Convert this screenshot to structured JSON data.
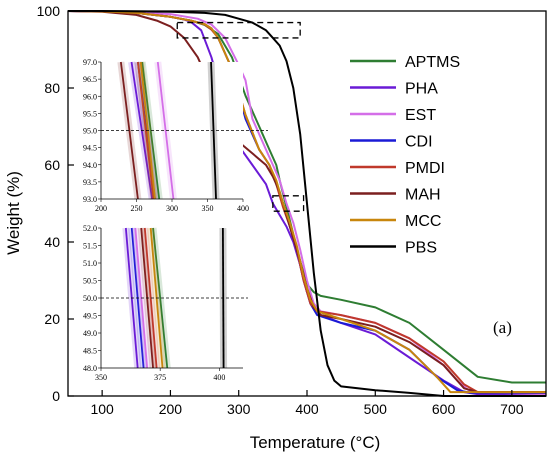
{
  "chart_data": {
    "type": "line",
    "xlabel": "Temperature (°C)",
    "ylabel": "Weight (%)",
    "xlim": [
      50,
      750
    ],
    "ylim": [
      0,
      100
    ],
    "xticks": [
      100,
      200,
      300,
      400,
      500,
      600,
      700
    ],
    "yticks": [
      0,
      20,
      40,
      60,
      80,
      100
    ],
    "grid": false,
    "legend_position": "top-right",
    "annotation": "(a)",
    "series": [
      {
        "name": "APTMS",
        "color": "#2e7d32",
        "x": [
          50,
          100,
          150,
          200,
          230,
          250,
          270,
          290,
          310,
          330,
          345,
          355,
          360,
          370,
          380,
          390,
          400,
          405,
          410,
          420,
          450,
          500,
          550,
          600,
          650,
          700,
          750
        ],
        "y": [
          100,
          99.9,
          99.5,
          98.5,
          97.5,
          96.4,
          94,
          88,
          78,
          70,
          64,
          60,
          56,
          49,
          42,
          35,
          29,
          28,
          27,
          26,
          25,
          23,
          19,
          12,
          5,
          3.5,
          3.5
        ]
      },
      {
        "name": "PHA",
        "color": "#6a1bd6",
        "x": [
          50,
          100,
          150,
          200,
          220,
          230,
          245,
          260,
          280,
          300,
          320,
          340,
          350,
          360,
          370,
          380,
          390,
          400,
          410,
          420,
          450,
          500,
          550,
          600,
          630,
          650,
          750
        ],
        "y": [
          100,
          99.9,
          99.5,
          98.5,
          97.8,
          97.2,
          95,
          88,
          75,
          65,
          60,
          55,
          50,
          47,
          44,
          40,
          34,
          27,
          24,
          21,
          19,
          16,
          10,
          4,
          1,
          0.5,
          0.5
        ]
      },
      {
        "name": "EST",
        "color": "#d46ee8",
        "x": [
          50,
          100,
          150,
          200,
          240,
          260,
          280,
          300,
          310,
          320,
          340,
          350,
          360,
          370,
          380,
          390,
          400,
          410,
          420,
          450,
          500,
          550,
          600,
          620,
          640,
          750
        ],
        "y": [
          100,
          99.9,
          99.6,
          99.2,
          98,
          96.5,
          93,
          86,
          82,
          72,
          64,
          60,
          56,
          50,
          45,
          38,
          30,
          24,
          22,
          21,
          19,
          15,
          8,
          4,
          1,
          0.5
        ]
      },
      {
        "name": "CDI",
        "color": "#1a1ad6",
        "x": [
          50,
          100,
          150,
          200,
          230,
          250,
          260,
          270,
          290,
          310,
          330,
          345,
          355,
          365,
          375,
          385,
          395,
          405,
          415,
          450,
          500,
          550,
          590,
          620,
          640,
          750
        ],
        "y": [
          100,
          99.9,
          99.5,
          98.5,
          97.5,
          96.6,
          95.5,
          93,
          85,
          72,
          64,
          60,
          55,
          50,
          44,
          38,
          30,
          24,
          21,
          19,
          17,
          12,
          5,
          1.5,
          0.8,
          0.8
        ]
      },
      {
        "name": "PMDI",
        "color": "#c0392b",
        "x": [
          50,
          100,
          150,
          200,
          230,
          250,
          260,
          270,
          290,
          310,
          330,
          345,
          355,
          365,
          375,
          385,
          395,
          405,
          415,
          450,
          500,
          550,
          600,
          630,
          650,
          750
        ],
        "y": [
          100,
          99.9,
          99.5,
          98.5,
          97.5,
          96.5,
          95.2,
          93,
          85,
          73,
          64,
          60,
          55,
          49,
          44,
          38,
          30,
          24,
          22,
          21,
          19,
          15,
          9,
          3,
          1,
          1
        ]
      },
      {
        "name": "MAH",
        "color": "#7b1f1f",
        "x": [
          50,
          100,
          150,
          180,
          200,
          220,
          240,
          250,
          260,
          280,
          300,
          320,
          340,
          350,
          360,
          370,
          380,
          390,
          400,
          410,
          420,
          450,
          500,
          550,
          600,
          630,
          650,
          750
        ],
        "y": [
          100,
          99.8,
          99,
          97.5,
          96,
          93,
          88,
          84,
          80,
          72,
          66,
          63,
          60,
          57,
          53,
          47,
          41,
          35,
          28,
          23,
          21,
          20,
          18,
          14,
          8,
          2,
          1,
          1
        ]
      },
      {
        "name": "MCC",
        "color": "#c8860d",
        "x": [
          50,
          100,
          150,
          200,
          230,
          250,
          260,
          270,
          290,
          310,
          330,
          345,
          355,
          365,
          375,
          385,
          395,
          405,
          415,
          450,
          500,
          550,
          590,
          610,
          750
        ],
        "y": [
          100,
          99.9,
          99.5,
          98.5,
          97.5,
          96.6,
          95.5,
          93,
          85,
          73,
          64,
          60,
          56,
          50,
          45,
          39,
          31,
          25,
          22,
          20,
          17,
          12,
          5,
          1,
          1
        ]
      },
      {
        "name": "PBS",
        "color": "#000000",
        "x": [
          50,
          100,
          200,
          250,
          280,
          300,
          320,
          340,
          350,
          360,
          370,
          380,
          390,
          400,
          410,
          420,
          430,
          440,
          450,
          500,
          550,
          580,
          600,
          750
        ],
        "y": [
          100,
          100,
          99.8,
          99.5,
          99,
          98,
          97,
          95,
          93,
          91,
          87,
          80,
          68,
          50,
          32,
          17,
          8,
          4,
          2.5,
          1.5,
          0.8,
          0.3,
          0,
          0
        ]
      }
    ],
    "insets": [
      {
        "xlim": [
          200,
          400
        ],
        "ylim": [
          93.0,
          97.0
        ],
        "xticks": [
          200,
          250,
          300,
          350,
          400
        ],
        "yticks": [
          "93.0",
          "93.5",
          "94.0",
          "94.5",
          "95.0",
          "95.5",
          "96.0",
          "96.5",
          "97.0"
        ],
        "reference_y": 95.0,
        "segments": [
          {
            "series": "APTMS",
            "x_top": 258,
            "x_bottom": 282
          },
          {
            "series": "PHA",
            "x_top": 243,
            "x_bottom": 272
          },
          {
            "series": "EST",
            "x_top": 280,
            "x_bottom": 302
          },
          {
            "series": "CDI",
            "x_top": 252,
            "x_bottom": 276
          },
          {
            "series": "PMDI",
            "x_top": 252,
            "x_bottom": 274
          },
          {
            "series": "MAH",
            "x_top": 228,
            "x_bottom": 252
          },
          {
            "series": "MCC",
            "x_top": 256,
            "x_bottom": 276
          },
          {
            "series": "PBS",
            "x_top": 355,
            "x_bottom": 362
          }
        ]
      },
      {
        "xlim": [
          350,
          410
        ],
        "ylim": [
          48.0,
          52.0
        ],
        "xticks": [
          350,
          375,
          400
        ],
        "yticks": [
          "48.0",
          "48.5",
          "49.0",
          "49.5",
          "50.0",
          "50.5",
          "51.0",
          "51.5",
          "52.0"
        ],
        "reference_y": 50.0,
        "segments": [
          {
            "series": "PHA",
            "x_top": 360.5,
            "x_bottom": 365.5
          },
          {
            "series": "CDI",
            "x_top": 363,
            "x_bottom": 368
          },
          {
            "series": "EST",
            "x_top": 364.5,
            "x_bottom": 369.5
          },
          {
            "series": "MAH",
            "x_top": 367,
            "x_bottom": 372
          },
          {
            "series": "PMDI",
            "x_top": 368.5,
            "x_bottom": 373.5
          },
          {
            "series": "APTMS",
            "x_top": 372,
            "x_bottom": 378
          },
          {
            "series": "MCC",
            "x_top": 371,
            "x_bottom": 376
          },
          {
            "series": "PBS",
            "x_top": 401.5,
            "x_bottom": 401.8
          }
        ]
      }
    ],
    "zoom_boxes": [
      {
        "x": [
          210,
          390
        ],
        "y": [
          93,
          97
        ]
      },
      {
        "x": [
          350,
          395
        ],
        "y": [
          48,
          52
        ]
      }
    ]
  }
}
